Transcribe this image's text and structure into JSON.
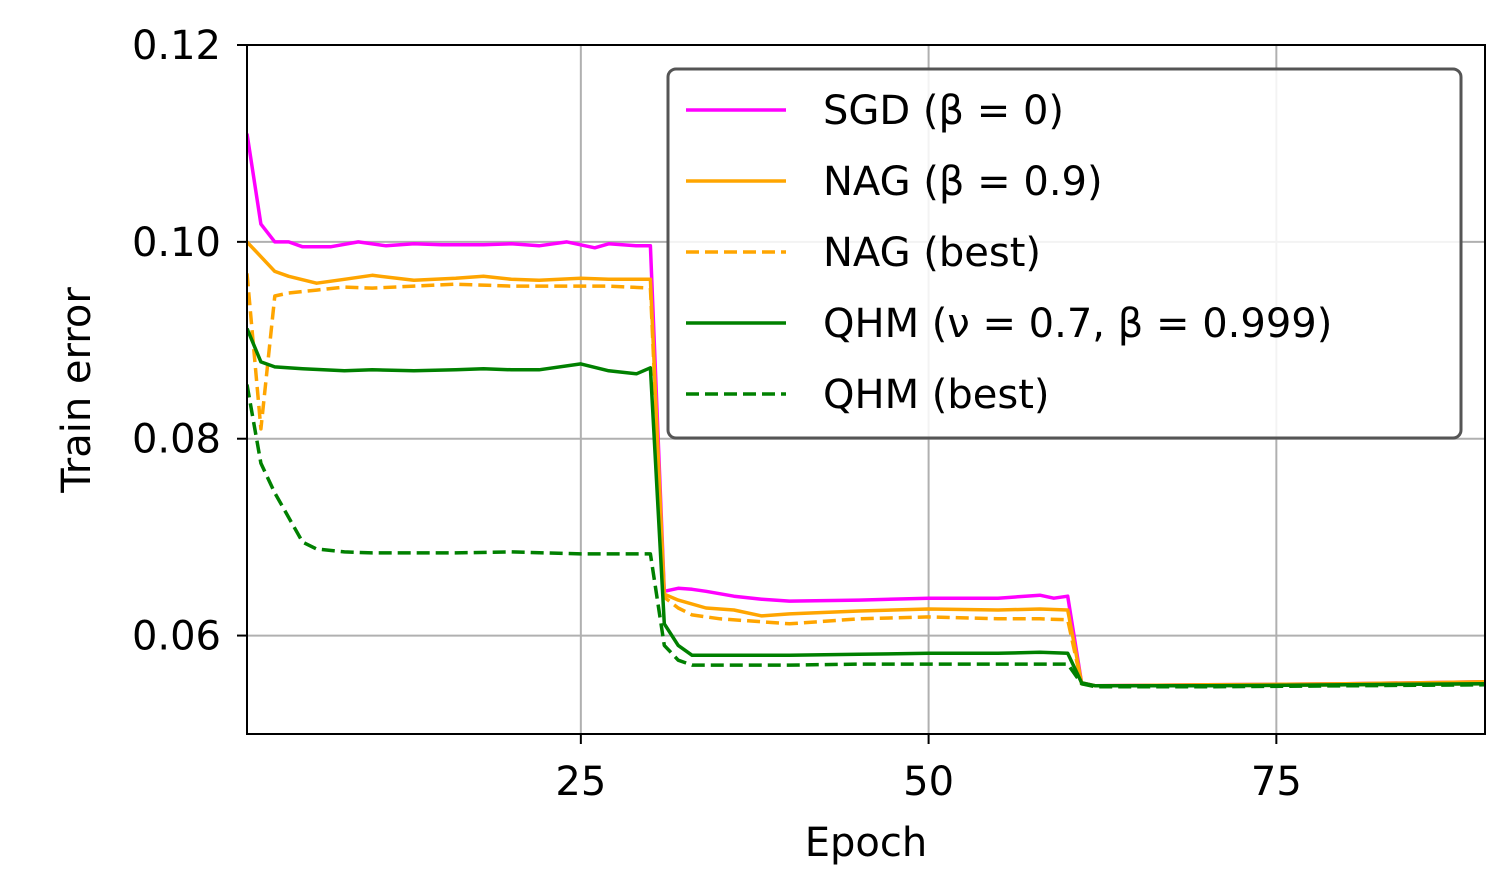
{
  "chart_data": {
    "type": "line",
    "title": "",
    "xlabel": "Epoch",
    "ylabel": "Train error",
    "xlim": [
      1,
      90
    ],
    "ylim": [
      0.05,
      0.12
    ],
    "xticks": [
      25,
      50,
      75
    ],
    "xtick_labels": [
      "25",
      "50",
      "75"
    ],
    "yticks": [
      0.06,
      0.08,
      0.1,
      0.12
    ],
    "ytick_labels": [
      "0.06",
      "0.08",
      "0.10",
      "0.12"
    ],
    "grid": true,
    "legend_position": "top-right",
    "series": [
      {
        "name": "SGD (β = 0)",
        "color": "#ff00ff",
        "dash": "solid",
        "x": [
          1,
          2,
          3,
          4,
          5,
          7,
          9,
          11,
          13,
          15,
          18,
          20,
          22,
          24,
          26,
          27,
          29,
          30,
          31,
          32,
          33,
          34,
          36,
          38,
          40,
          45,
          50,
          55,
          58,
          59,
          60,
          61,
          62,
          70,
          80,
          90
        ],
        "values": [
          0.111,
          0.1018,
          0.1,
          0.1,
          0.0995,
          0.0995,
          0.1,
          0.0996,
          0.0998,
          0.0997,
          0.0997,
          0.0998,
          0.0996,
          0.1,
          0.0994,
          0.0998,
          0.0996,
          0.0996,
          0.0645,
          0.0648,
          0.0647,
          0.0645,
          0.064,
          0.0637,
          0.0635,
          0.0636,
          0.0638,
          0.0638,
          0.0641,
          0.0638,
          0.064,
          0.0552,
          0.0549,
          0.055,
          0.0551,
          0.0553
        ]
      },
      {
        "name": "NAG (β = 0.9)",
        "color": "#ffa500",
        "dash": "solid",
        "x": [
          1,
          3,
          4,
          6,
          8,
          10,
          13,
          16,
          18,
          20,
          22,
          25,
          27,
          30,
          31,
          32,
          34,
          36,
          38,
          40,
          45,
          50,
          55,
          58,
          60,
          61,
          62,
          70,
          80,
          90
        ],
        "values": [
          0.1,
          0.097,
          0.0965,
          0.0958,
          0.0962,
          0.0966,
          0.0961,
          0.0963,
          0.0965,
          0.0962,
          0.0961,
          0.0963,
          0.0962,
          0.0962,
          0.0642,
          0.0636,
          0.0628,
          0.0626,
          0.062,
          0.0622,
          0.0625,
          0.0627,
          0.0626,
          0.0627,
          0.0626,
          0.0552,
          0.0549,
          0.055,
          0.0551,
          0.0553
        ]
      },
      {
        "name": "NAG (best)",
        "color": "#ffa500",
        "dash": "dashed",
        "x": [
          1,
          2,
          3,
          4,
          6,
          8,
          10,
          13,
          16,
          20,
          24,
          27,
          30,
          31,
          32,
          33,
          35,
          37,
          40,
          45,
          50,
          55,
          58,
          60,
          61,
          62,
          70,
          80,
          90
        ],
        "values": [
          0.0968,
          0.081,
          0.0945,
          0.0948,
          0.0951,
          0.0954,
          0.0953,
          0.0955,
          0.0957,
          0.0955,
          0.0955,
          0.0955,
          0.0953,
          0.0639,
          0.0628,
          0.0621,
          0.0617,
          0.0615,
          0.0612,
          0.0617,
          0.0619,
          0.0617,
          0.0617,
          0.0616,
          0.0551,
          0.0549,
          0.0549,
          0.055,
          0.0551
        ]
      },
      {
        "name": "QHM (ν = 0.7, β = 0.999)",
        "color": "#008000",
        "dash": "solid",
        "x": [
          1,
          2,
          3,
          5,
          8,
          10,
          13,
          16,
          18,
          20,
          22,
          25,
          27,
          29,
          30,
          31,
          32,
          33,
          35,
          38,
          40,
          45,
          50,
          55,
          58,
          60,
          61,
          62,
          70,
          80,
          90
        ],
        "values": [
          0.0912,
          0.0878,
          0.0873,
          0.0871,
          0.0869,
          0.087,
          0.0869,
          0.087,
          0.0871,
          0.087,
          0.087,
          0.0876,
          0.0869,
          0.0866,
          0.0872,
          0.0612,
          0.059,
          0.058,
          0.058,
          0.058,
          0.058,
          0.0581,
          0.0582,
          0.0582,
          0.0583,
          0.0582,
          0.0552,
          0.0549,
          0.0549,
          0.055,
          0.0551
        ]
      },
      {
        "name": "QHM (best)",
        "color": "#008000",
        "dash": "dashed",
        "x": [
          1,
          2,
          3,
          4,
          5,
          6,
          8,
          10,
          13,
          16,
          20,
          25,
          30,
          31,
          32,
          33,
          35,
          40,
          45,
          50,
          55,
          58,
          60,
          61,
          62,
          70,
          80,
          90
        ],
        "values": [
          0.0855,
          0.0775,
          0.0745,
          0.072,
          0.0695,
          0.0688,
          0.0685,
          0.0684,
          0.0684,
          0.0684,
          0.0685,
          0.0683,
          0.0683,
          0.059,
          0.0575,
          0.057,
          0.057,
          0.057,
          0.0571,
          0.0571,
          0.0571,
          0.0571,
          0.0571,
          0.0551,
          0.0548,
          0.0548,
          0.0549,
          0.055
        ]
      }
    ]
  }
}
